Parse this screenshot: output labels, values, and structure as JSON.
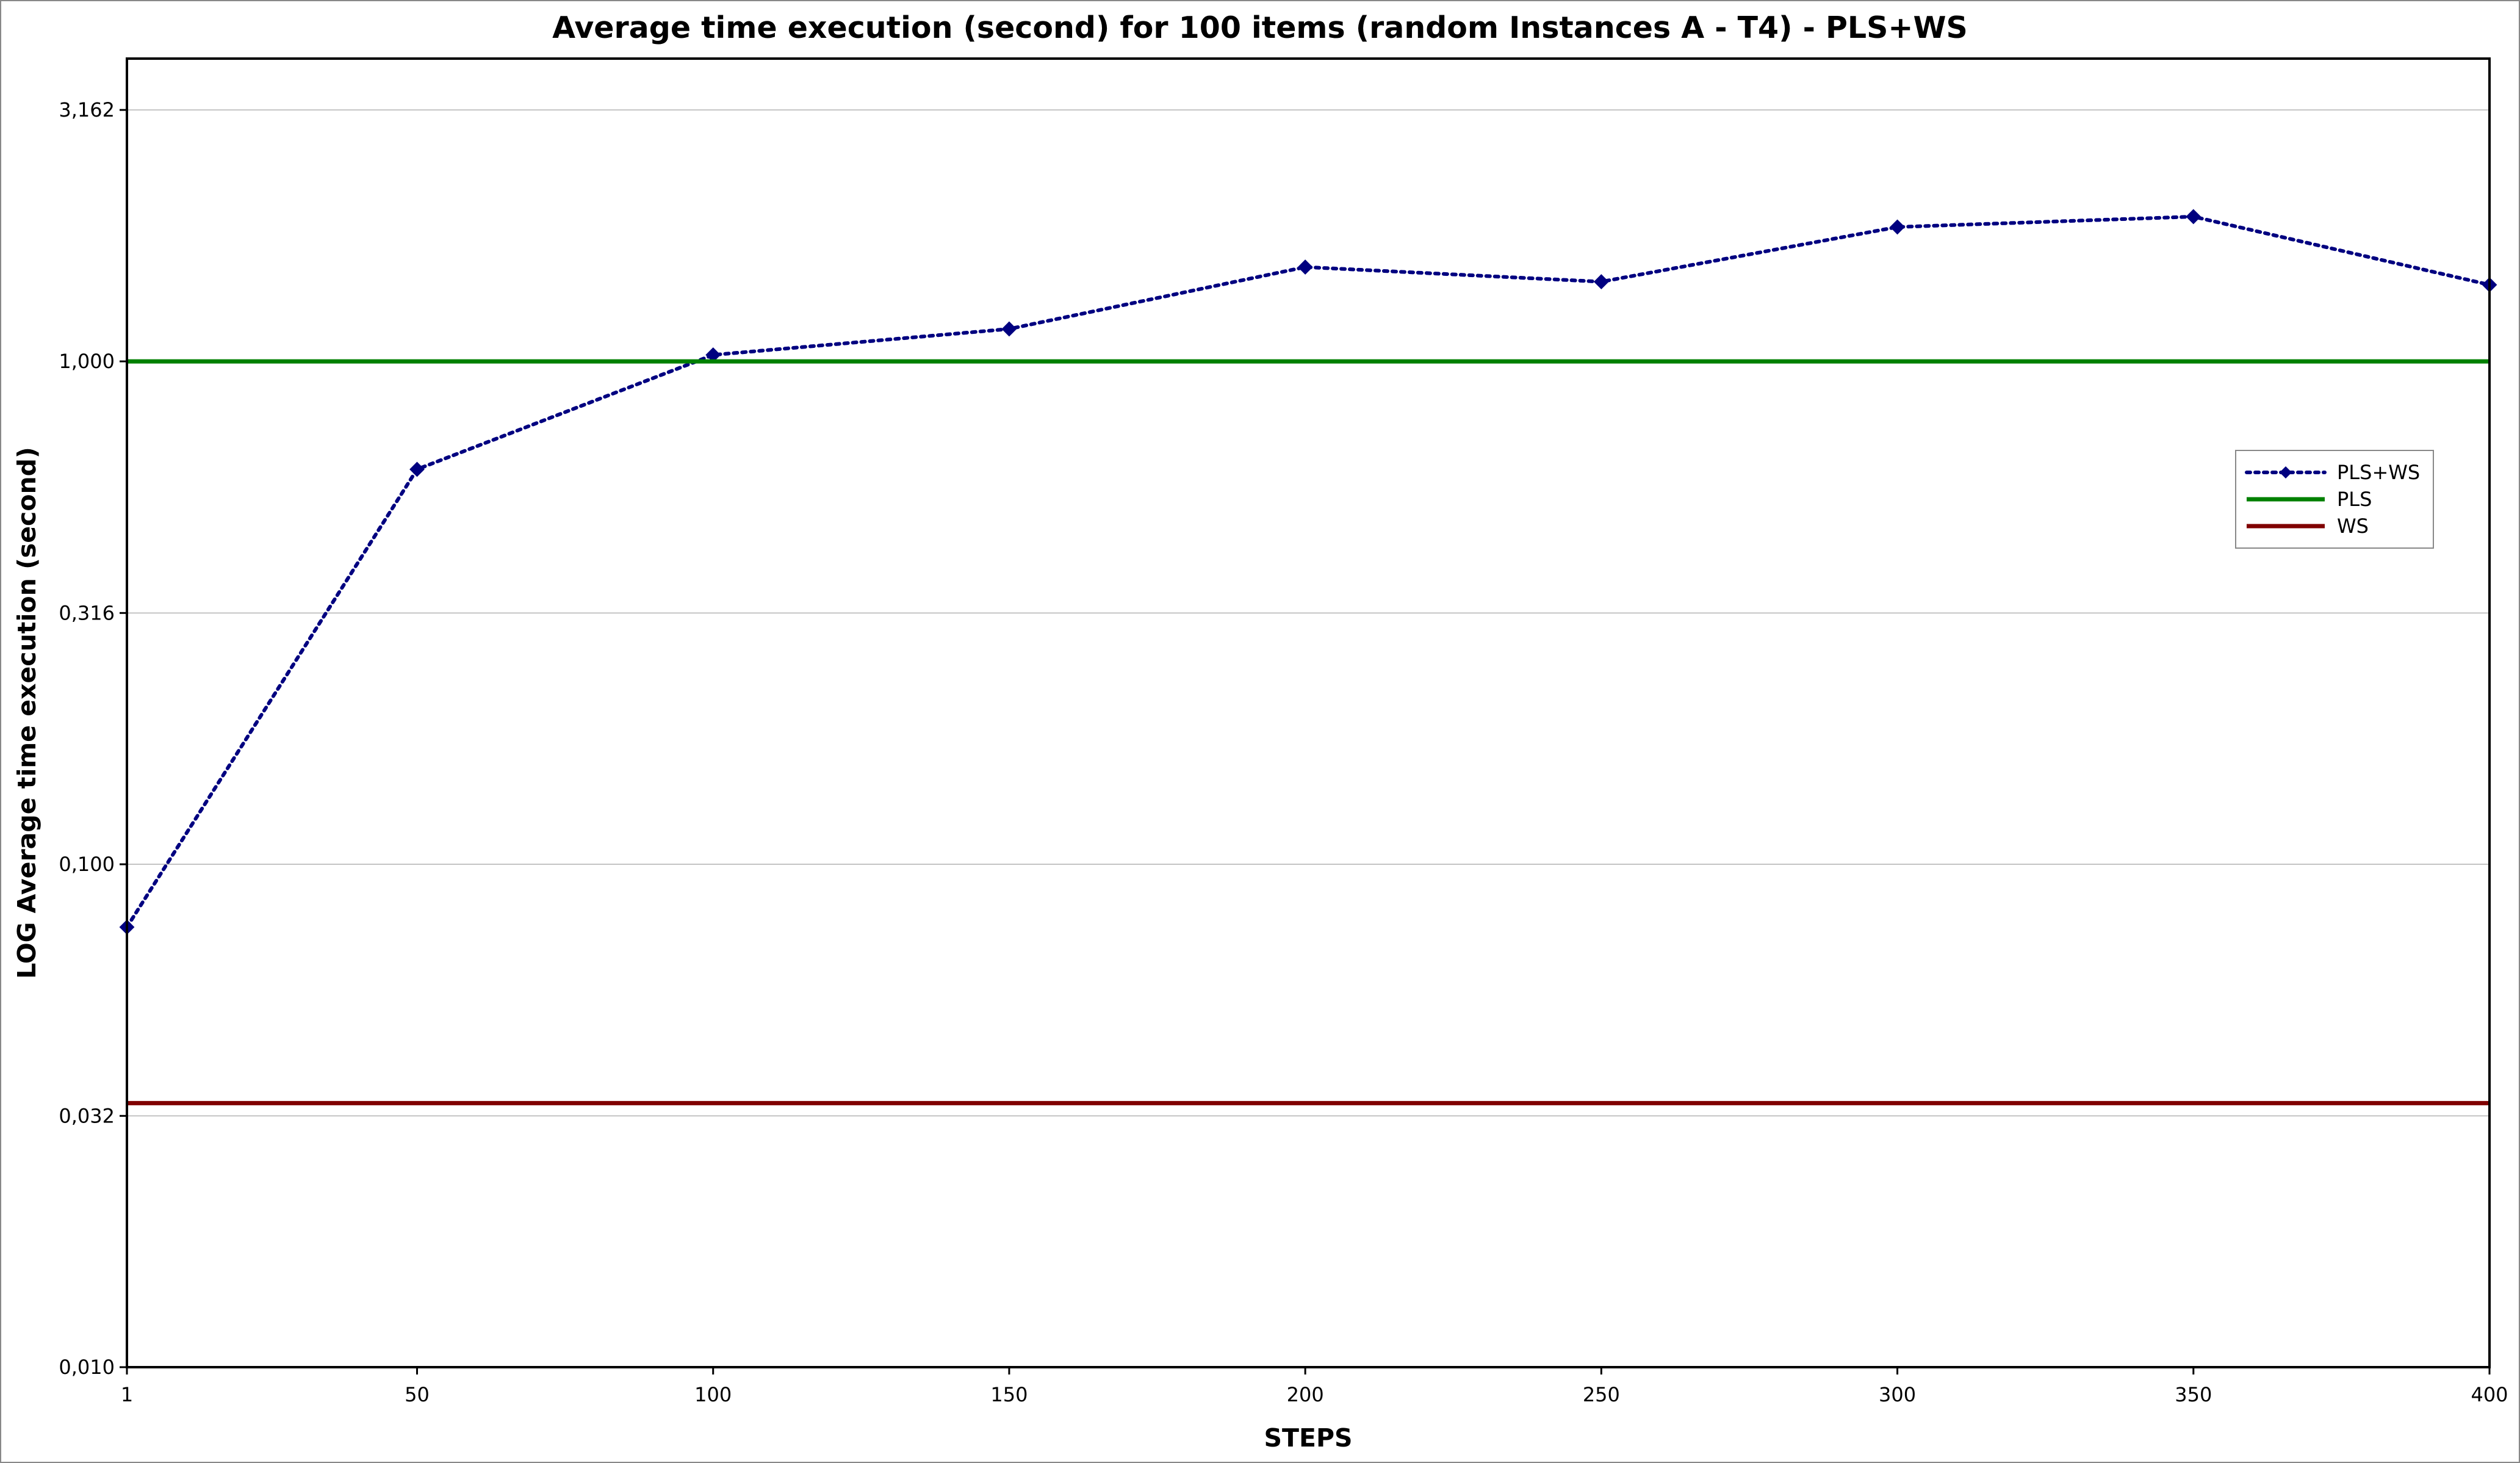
{
  "chart_data": {
    "type": "line",
    "title": "Average time execution (second) for 100 items (random Instances A - T4) - PLS+WS",
    "xlabel": "STEPS",
    "ylabel": "LOG Average time execution (second)",
    "y_scale": "log",
    "grid": "horizontal",
    "legend_position": "right",
    "x_ticks": [
      "1",
      "50",
      "100",
      "150",
      "200",
      "250",
      "300",
      "350",
      "400"
    ],
    "x_tick_values": [
      1,
      50,
      100,
      150,
      200,
      250,
      300,
      350,
      400
    ],
    "y_ticks": [
      "0,010",
      "0,032",
      "0,100",
      "0,316",
      "1,000",
      "3,162"
    ],
    "y_tick_values": [
      0.01,
      0.0316,
      0.1,
      0.316,
      1.0,
      3.162
    ],
    "xlim": [
      1,
      400
    ],
    "ylim": [
      0.01,
      4.0
    ],
    "series": [
      {
        "name": "PLS+WS",
        "style": "dotted-with-diamond-markers",
        "color": "#000080",
        "x": [
          1,
          50,
          100,
          150,
          200,
          250,
          300,
          350,
          400
        ],
        "y": [
          0.075,
          0.61,
          1.03,
          1.16,
          1.54,
          1.44,
          1.85,
          1.94,
          1.42
        ]
      },
      {
        "name": "PLS",
        "style": "solid",
        "color": "#008000",
        "constant": 1.0
      },
      {
        "name": "WS",
        "style": "solid",
        "color": "#800000",
        "constant": 0.0335
      }
    ]
  }
}
